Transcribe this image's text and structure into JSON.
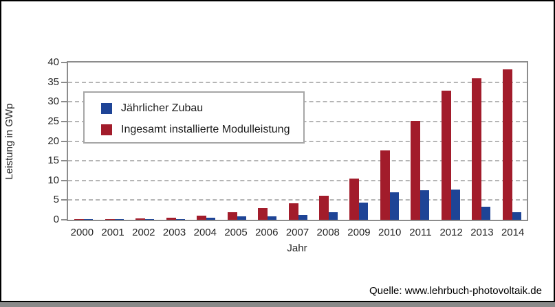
{
  "frame": {
    "border_color": "#000000",
    "footer_bar_color": "#8a8a8a",
    "background": "#ffffff"
  },
  "source": {
    "label": "Quelle: www.lehrbuch-photovoltaik.de"
  },
  "chart_data": {
    "type": "bar",
    "title": "",
    "xlabel": "Jahr",
    "ylabel": "Leistung in GWp",
    "ylim": [
      0,
      40
    ],
    "ytick_step": 5,
    "ytick_labels": [
      "0",
      "5",
      "10",
      "15",
      "20",
      "25",
      "30",
      "35",
      "40"
    ],
    "grid": "horizontal-dashed",
    "grid_color": "#b5b5b5",
    "axis_color": "#8c8c8c",
    "legend_position": "upper-left-inside",
    "categories": [
      "2000",
      "2001",
      "2002",
      "2003",
      "2004",
      "2005",
      "2006",
      "2007",
      "2008",
      "2009",
      "2010",
      "2011",
      "2012",
      "2013",
      "2014"
    ],
    "series": [
      {
        "name": "Jährlicher Zubau",
        "color": "#1e4496",
        "bar_side": "right",
        "values": [
          0.05,
          0.1,
          0.1,
          0.15,
          0.6,
          0.95,
          0.85,
          1.3,
          1.9,
          4.4,
          7.0,
          7.5,
          7.6,
          3.3,
          2.0
        ]
      },
      {
        "name": "Ingesamt installierte Modulleistung",
        "color": "#a21c2b",
        "bar_side": "left",
        "values": [
          0.1,
          0.2,
          0.3,
          0.45,
          1.1,
          2.0,
          2.9,
          4.2,
          6.2,
          10.5,
          17.6,
          25.1,
          32.8,
          36.0,
          38.2
        ]
      }
    ]
  }
}
